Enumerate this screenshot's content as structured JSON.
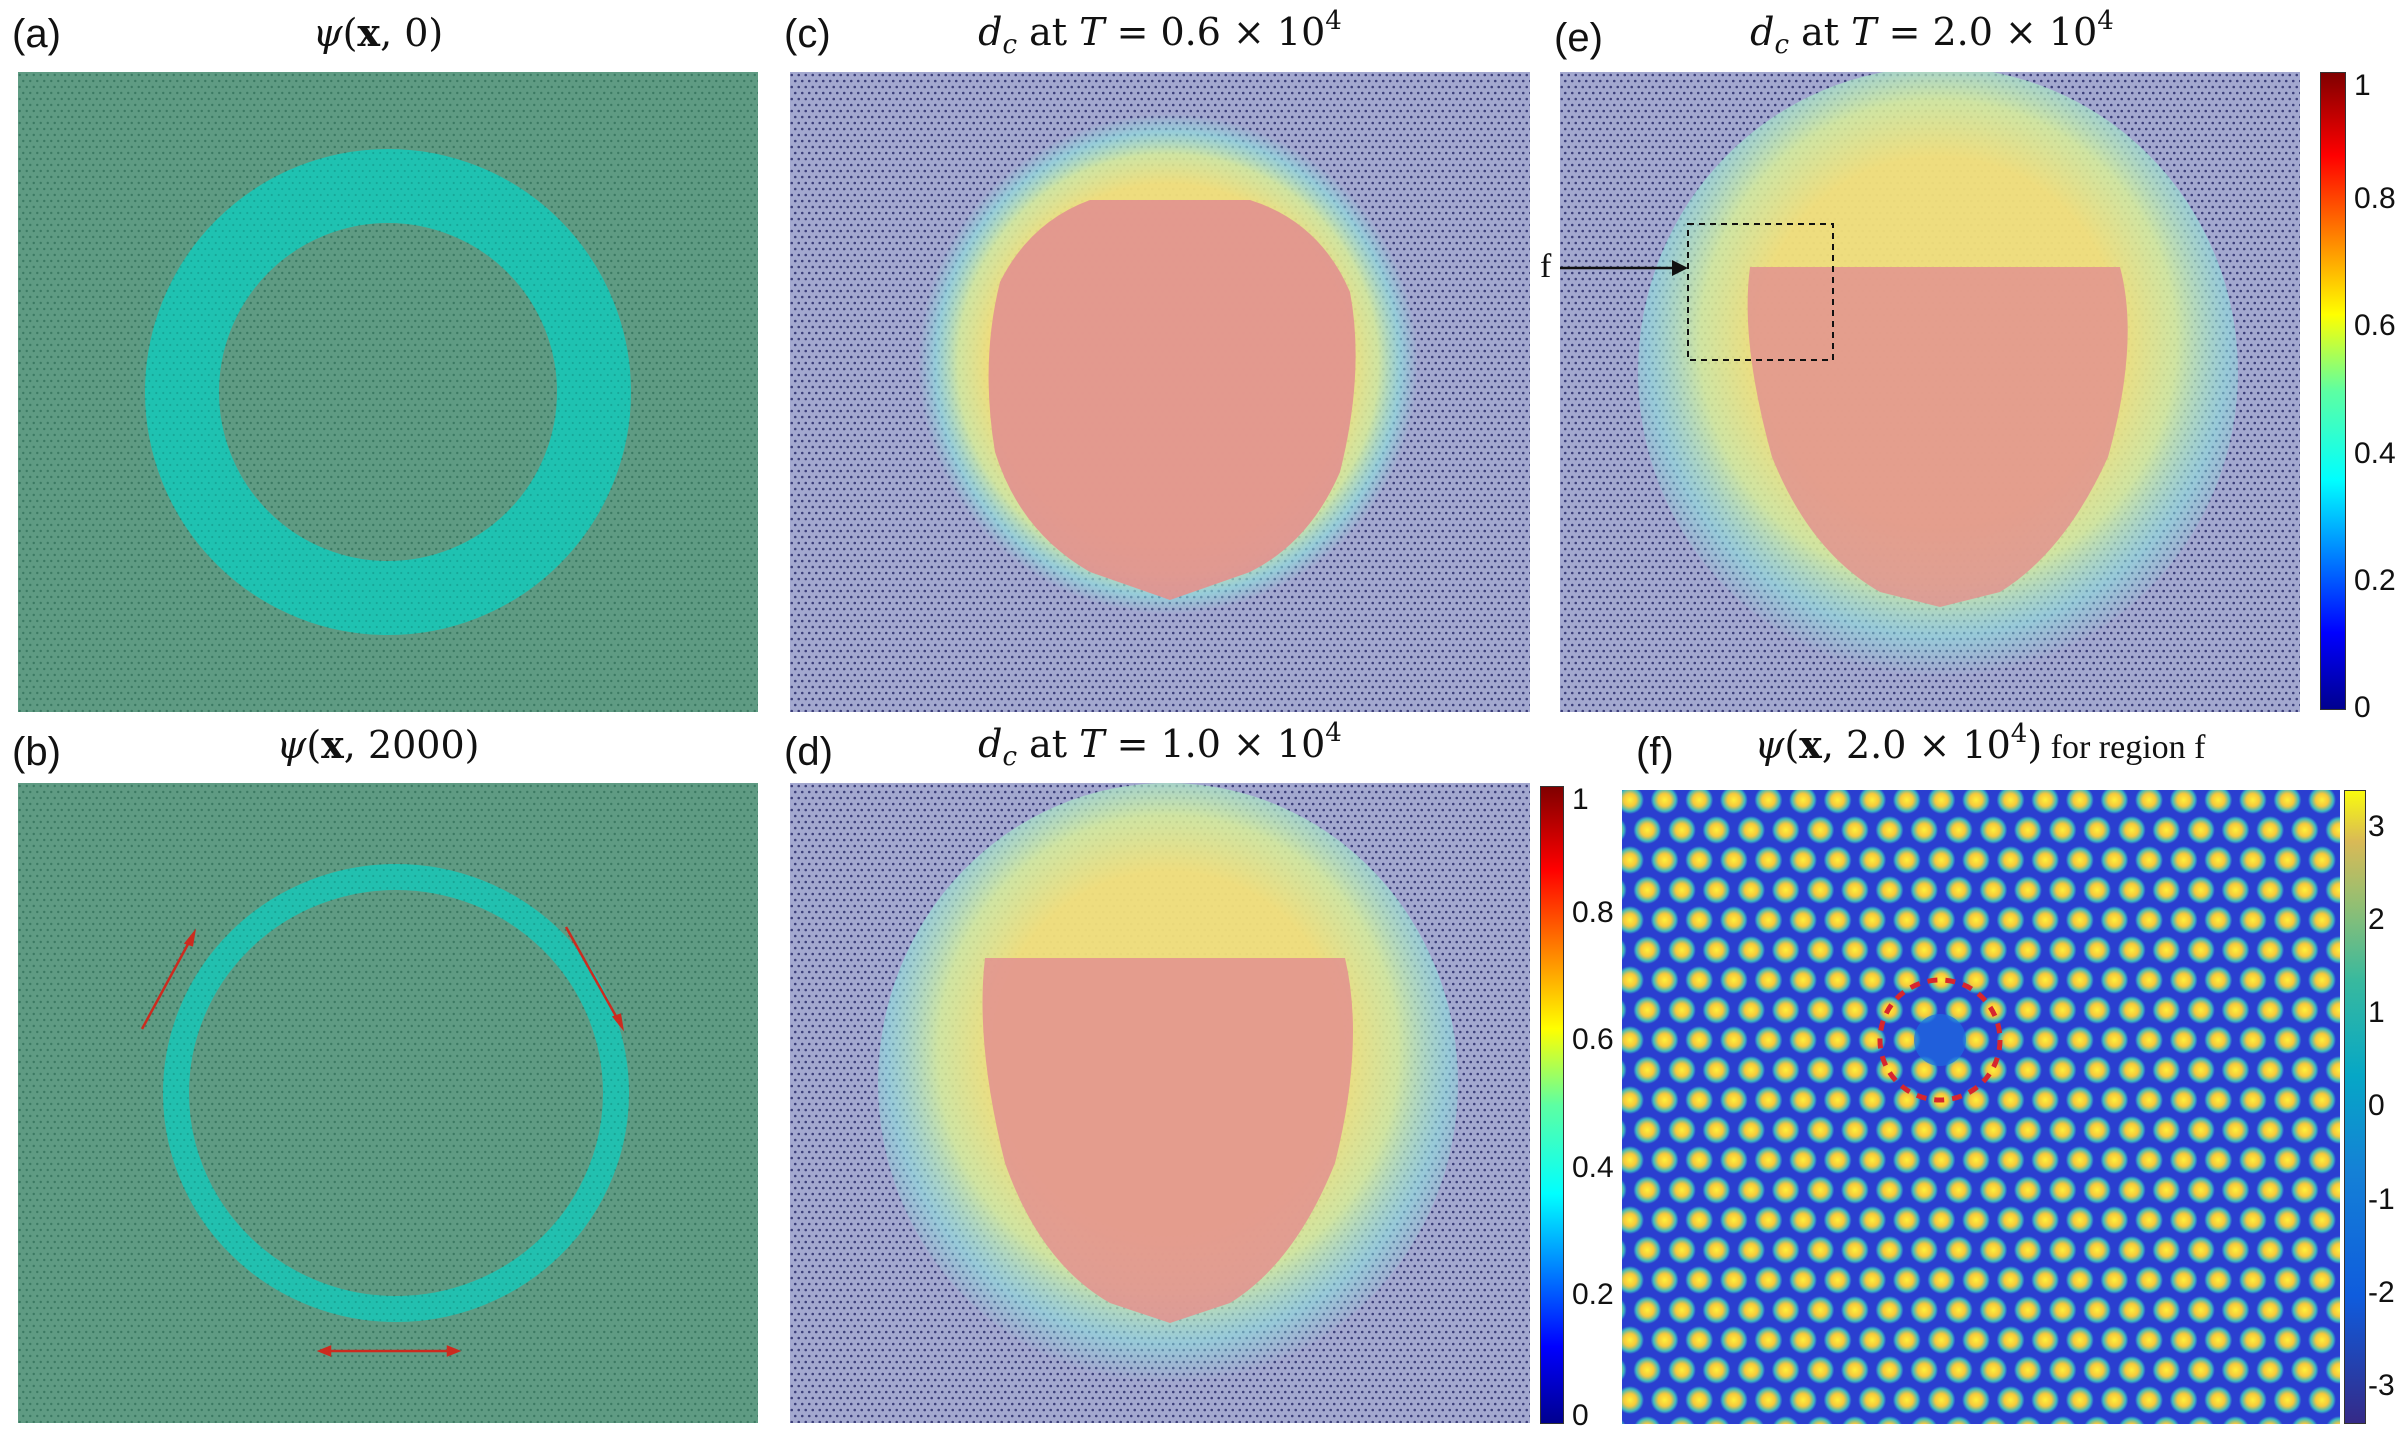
{
  "figure": {
    "labels": {
      "a": "(a)",
      "b": "(b)",
      "c": "(c)",
      "d": "(d)",
      "e": "(e)",
      "f": "(f)"
    },
    "titles": {
      "a": {
        "psi": "ψ",
        "x": "x",
        "arg": ", 0)"
      },
      "b": {
        "psi": "ψ",
        "x": "x",
        "arg": ", 2000)"
      },
      "c": {
        "d": "d",
        "sub": "c",
        "at": " at ",
        "T": "T",
        "eq": " = 0.6 × 10",
        "exp": "4"
      },
      "d": {
        "d": "d",
        "sub": "c",
        "at": " at ",
        "T": "T",
        "eq": " = 1.0 × 10",
        "exp": "4"
      },
      "e": {
        "d": "d",
        "sub": "c",
        "at": " at ",
        "T": "T",
        "eq": " = 2.0 × 10",
        "exp": "4"
      },
      "f": {
        "psi": "ψ",
        "x": "x",
        "arg": ", 2.0 × 10",
        "exp": "4",
        "close": ")",
        "suffix": "  for region f"
      }
    },
    "region_marker": "f",
    "colorbar_dc": {
      "ticks": [
        "0",
        "0.2",
        "0.4",
        "0.6",
        "0.8",
        "1"
      ],
      "range": [
        0,
        1
      ]
    },
    "colorbar_psi": {
      "ticks": [
        "-3",
        "-2",
        "-1",
        "0",
        "1",
        "2",
        "3"
      ],
      "range": [
        -3.4,
        3.4
      ]
    },
    "colors": {
      "lattice_bg": "#5f9b83",
      "ring": "#1fc2b1",
      "dc_bg": "#9aa0c8",
      "dc_core": "#d9928e",
      "dc_rim": "#f3e68a",
      "arrow": "#cc2b1f",
      "dashed_circle": "#d7262e"
    }
  }
}
